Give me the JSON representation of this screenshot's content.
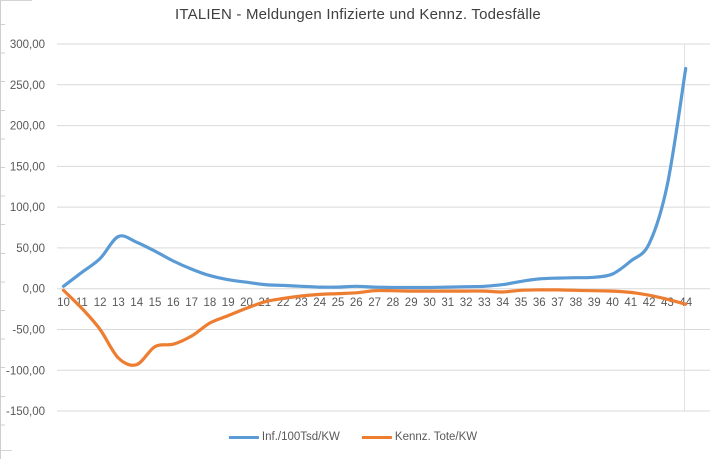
{
  "colors": {
    "series1": "#5B9BD5",
    "series2": "#ED7D31",
    "gridline": "#D9D9D9",
    "plot_border": "#E2E2E2",
    "axis_text": "#595959",
    "title_text": "#404040",
    "background": "#FFFFFF"
  },
  "legend": {
    "item1_label": "Inf./100Tsd/KW",
    "item2_label": "Kennz. Tote/KW"
  },
  "chart_data": {
    "type": "line",
    "title": "ITALIEN - Meldungen Infizierte und Kennz. Todesfälle",
    "xlabel": "",
    "ylabel": "",
    "categories": [
      10,
      11,
      12,
      13,
      14,
      15,
      16,
      17,
      18,
      19,
      20,
      21,
      22,
      23,
      24,
      25,
      26,
      27,
      28,
      29,
      30,
      31,
      32,
      33,
      34,
      35,
      36,
      37,
      38,
      39,
      40,
      41,
      42,
      43,
      44
    ],
    "ylim": [
      -150,
      300
    ],
    "ytick_values": [
      300,
      250,
      200,
      150,
      100,
      50,
      0,
      -50,
      -100,
      -150
    ],
    "ytick_labels": [
      "300,00",
      "250,00",
      "200,00",
      "150,00",
      "100,00",
      "50,00",
      "0,00",
      "-50,00",
      "-100,00",
      "-150,00"
    ],
    "grid": true,
    "smooth_lines": true,
    "legend_position": "bottom",
    "series": [
      {
        "name": "Inf./100Tsd/KW",
        "color": "#5B9BD5",
        "values": [
          3,
          20,
          37,
          64,
          57,
          46,
          34,
          24,
          16,
          11,
          8,
          5,
          4,
          3,
          2,
          2,
          3,
          2,
          1.5,
          1.5,
          1.5,
          2,
          2.5,
          3,
          5,
          9,
          12,
          13,
          13.5,
          14,
          18,
          34,
          55,
          128,
          270
        ]
      },
      {
        "name": "Kennz. Tote/KW",
        "color": "#ED7D31",
        "values": [
          -2,
          -24,
          -50,
          -85,
          -93,
          -71,
          -68,
          -58,
          -42,
          -33,
          -24,
          -16,
          -12,
          -9,
          -7,
          -6,
          -5,
          -2.5,
          -2.5,
          -3,
          -3,
          -3,
          -3,
          -3,
          -4,
          -2,
          -1.5,
          -1.5,
          -2,
          -2.5,
          -3,
          -4.5,
          -8,
          -13,
          -19
        ]
      }
    ]
  }
}
